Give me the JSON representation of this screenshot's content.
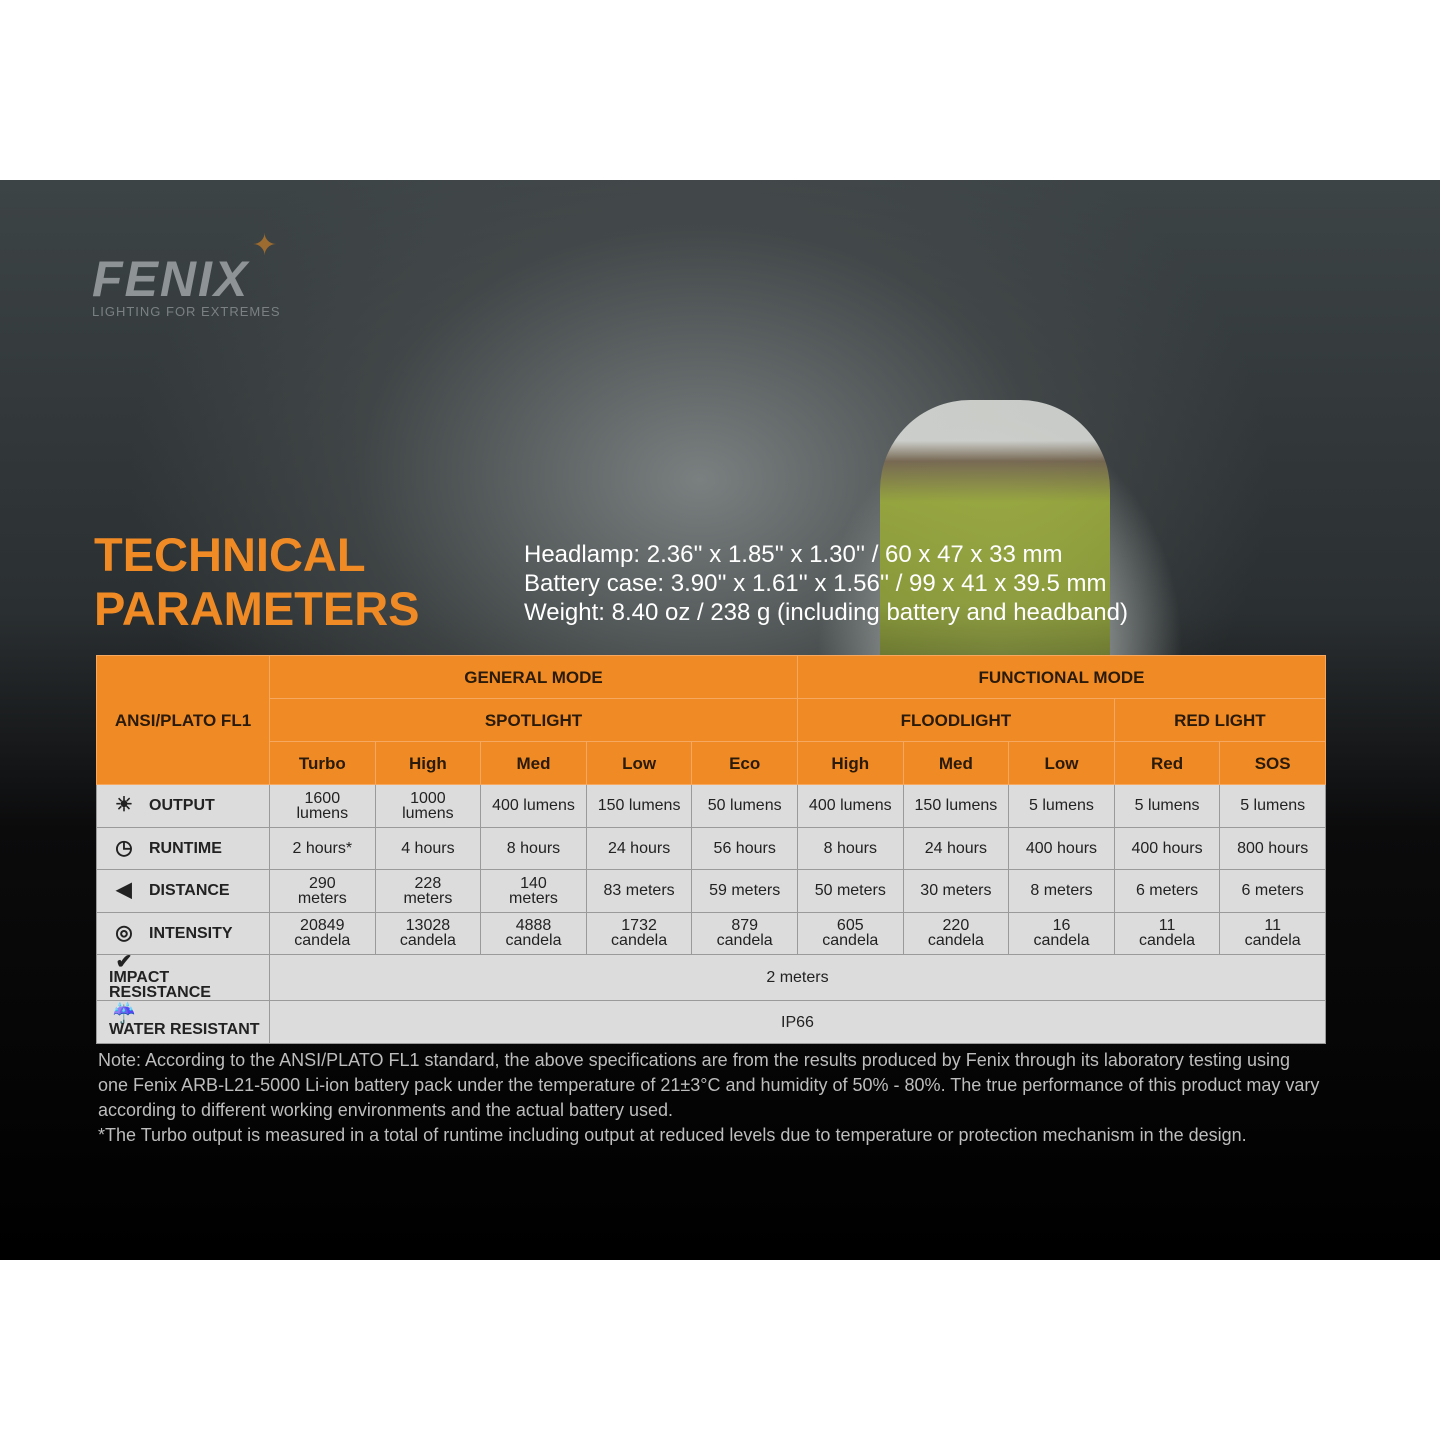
{
  "logo": {
    "brand": "FENIX",
    "tagline": "LIGHTING FOR EXTREMES"
  },
  "title": {
    "line1": "TECHNICAL",
    "line2": "PARAMETERS"
  },
  "dimensions": [
    "Headlamp: 2.36'' x 1.85'' x 1.30'' / 60 x 47 x 33 mm",
    "Battery case: 3.90'' x 1.61'' x 1.56'' / 99 x 41 x 39.5 mm",
    "Weight: 8.40 oz / 238 g (including battery and headband)"
  ],
  "colors": {
    "accent": "#f08a24",
    "cell": "#dcdcdc"
  },
  "table": {
    "corner": "ANSI/PLATO FL1",
    "groups": [
      "GENERAL MODE",
      "FUNCTIONAL MODE"
    ],
    "subgroups": [
      "SPOTLIGHT",
      "FLOODLIGHT",
      "RED LIGHT"
    ],
    "modes": [
      "Turbo",
      "High",
      "Med",
      "Low",
      "Eco",
      "High",
      "Med",
      "Low",
      "Red",
      "SOS"
    ],
    "rows": [
      {
        "icon": "light-rays-icon",
        "label": "OUTPUT",
        "values": [
          "1600 lumens",
          "1000 lumens",
          "400 lumens",
          "150 lumens",
          "50 lumens",
          "400 lumens",
          "150 lumens",
          "5 lumens",
          "5 lumens",
          "5 lumens"
        ]
      },
      {
        "icon": "clock-icon",
        "label": "RUNTIME",
        "values": [
          "2 hours*",
          "4 hours",
          "8 hours",
          "24 hours",
          "56 hours",
          "8 hours",
          "24 hours",
          "400 hours",
          "400 hours",
          "800 hours"
        ]
      },
      {
        "icon": "beam-distance-icon",
        "label": "DISTANCE",
        "values": [
          "290 meters",
          "228 meters",
          "140 meters",
          "83 meters",
          "59 meters",
          "50 meters",
          "30 meters",
          "8 meters",
          "6 meters",
          "6 meters"
        ]
      },
      {
        "icon": "target-icon",
        "label": "INTENSITY",
        "values": [
          "20849 candela",
          "13028 candela",
          "4888 candela",
          "1732 candela",
          "879 candela",
          "605 candela",
          "220 candela",
          "16 candela",
          "11 candela",
          "11 candela"
        ]
      }
    ],
    "impact": {
      "icon": "impact-check-icon",
      "label": "IMPACT RESISTANCE",
      "value": "2 meters"
    },
    "water": {
      "icon": "rain-cloud-icon",
      "label": "WATER RESISTANT",
      "value": "IP66"
    }
  },
  "note": [
    "Note: According to the ANSI/PLATO FL1 standard, the above specifications are from the results produced by Fenix through its laboratory testing using one Fenix ARB-L21-5000 Li-ion battery pack under the temperature of 21±3°C and humidity of 50% - 80%. The true performance of this product may vary according to different working environments and the actual battery used.",
    "*The Turbo output is measured in a total of runtime including output at reduced levels due to temperature or protection mechanism in the design."
  ]
}
